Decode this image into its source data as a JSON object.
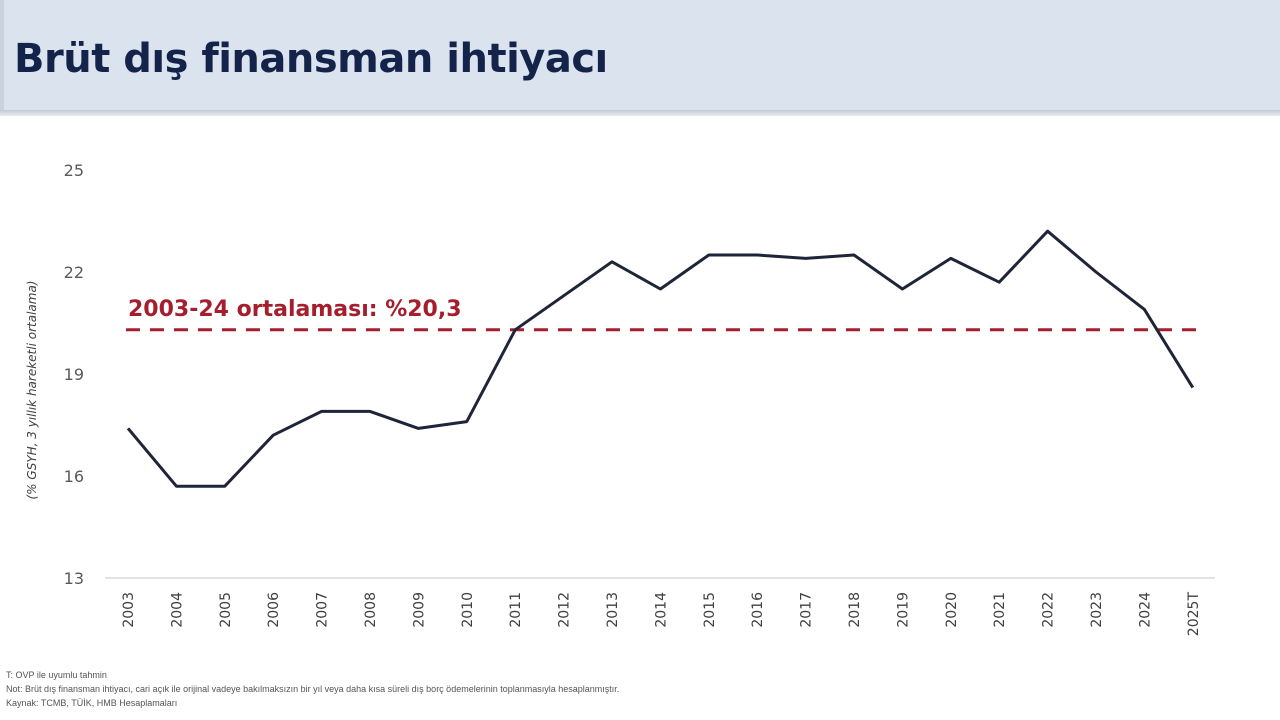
{
  "header": {
    "title": "Brüt dış finansman ihtiyacı"
  },
  "colors": {
    "header_bg": "#dbe3ef",
    "title": "#14234a",
    "line": "#1f2538",
    "average": "#a51e2e",
    "axis": "#d9d9d9"
  },
  "chart_data": {
    "type": "line",
    "title": "Brüt dış finansman ihtiyacı",
    "xlabel": "",
    "ylabel": "(% GSYH, 3 yıllık hareketli ortalama)",
    "ylim": [
      13,
      25
    ],
    "yticks": [
      "25",
      "22",
      "19",
      "16",
      "13"
    ],
    "grid": false,
    "legend": "none",
    "categories": [
      "2003",
      "2004",
      "2005",
      "2006",
      "2007",
      "2008",
      "2009",
      "2010",
      "2011",
      "2012",
      "2013",
      "2014",
      "2015",
      "2016",
      "2017",
      "2018",
      "2019",
      "2020",
      "2021",
      "2022",
      "2023",
      "2024",
      "2025T"
    ],
    "series": [
      {
        "name": "Brüt dış finansman ihtiyacı",
        "values": [
          17.4,
          15.7,
          15.7,
          17.2,
          17.9,
          17.9,
          17.4,
          17.6,
          20.3,
          21.3,
          22.3,
          21.5,
          22.5,
          22.5,
          22.4,
          22.5,
          21.5,
          22.4,
          21.7,
          23.2,
          22.0,
          20.9,
          18.6
        ]
      }
    ],
    "reference_lines": [
      {
        "label": "2003-24 ortalaması: %20,3",
        "value": 20.3,
        "style": "dashed"
      }
    ],
    "annotations": [
      "2003-24 ortalaması: %20,3"
    ]
  },
  "footnotes": {
    "line1": "T: OVP ile uyumlu tahmin",
    "line2": "Not: Brüt dış finansman ihtiyacı, cari açık ile orijinal vadeye bakılmaksızın bir yıl veya daha kısa süreli dış borç ödemelerinin toplanmasıyla hesaplanmıştır.",
    "line3": "Kaynak: TCMB, TÜİK, HMB Hesaplamaları"
  }
}
